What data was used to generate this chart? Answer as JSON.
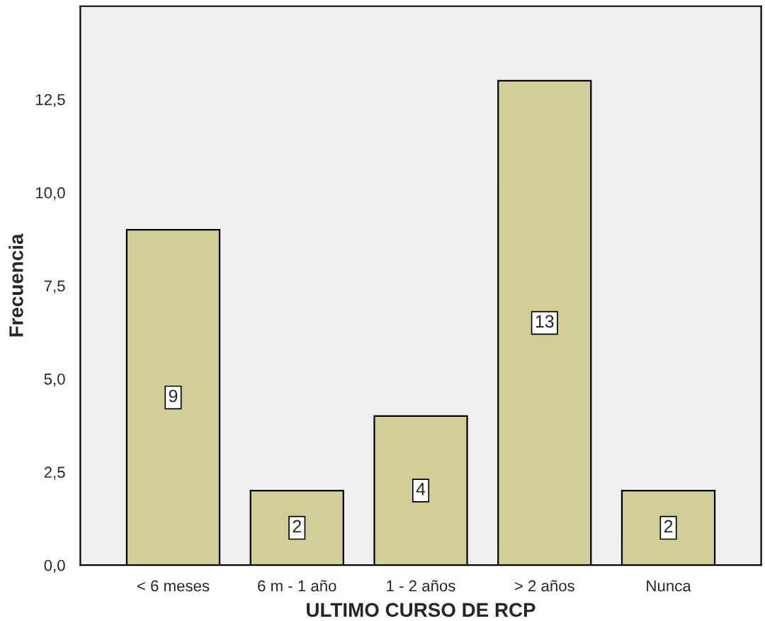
{
  "chart_data": {
    "type": "bar",
    "xlabel": "ULTIMO CURSO DE RCP",
    "ylabel": "Frecuencia",
    "categories": [
      "< 6 meses",
      "6 m - 1 año",
      "1 - 2 años",
      "> 2 años",
      "Nunca"
    ],
    "values": [
      9,
      2,
      4,
      13,
      2
    ],
    "color": "#d3ce97",
    "ylim": [
      0,
      15
    ],
    "yticks": [
      {
        "value": 0,
        "label": "0,0"
      },
      {
        "value": 2.5,
        "label": "2,5"
      },
      {
        "value": 5,
        "label": "5,0"
      },
      {
        "value": 7.5,
        "label": "7,5"
      },
      {
        "value": 10,
        "label": "10,0"
      },
      {
        "value": 12.5,
        "label": "12,5"
      }
    ],
    "data_labels": true,
    "grid": false
  }
}
